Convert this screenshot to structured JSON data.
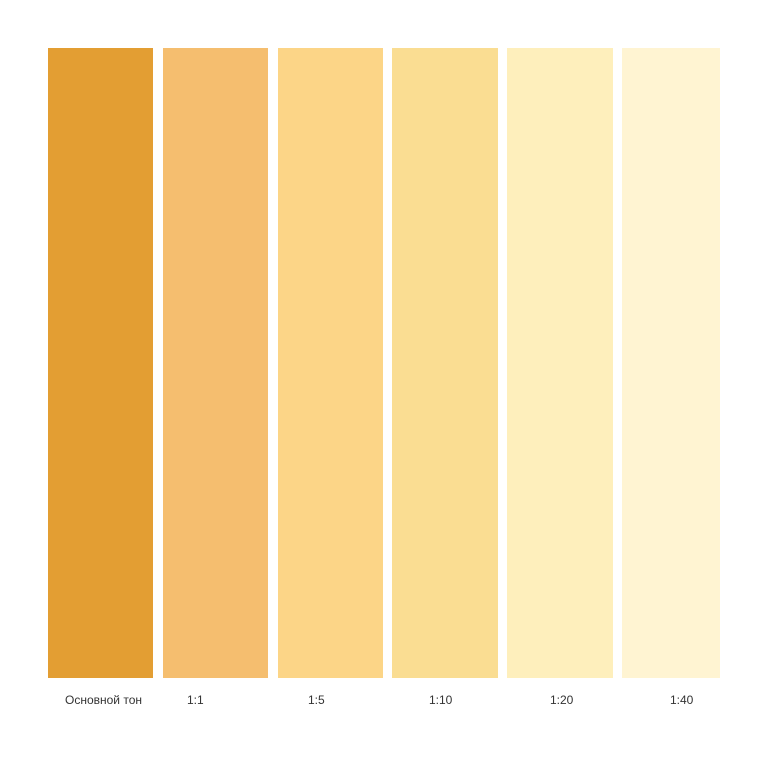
{
  "swatches": [
    {
      "label": "Основной тон",
      "color": "#E39E33"
    },
    {
      "label": "1:1",
      "color": "#F5BE6F"
    },
    {
      "label": "1:5",
      "color": "#FCD587"
    },
    {
      "label": "1:10",
      "color": "#FADD92"
    },
    {
      "label": "1:20",
      "color": "#FEEFBC"
    },
    {
      "label": "1:40",
      "color": "#FFF4D2"
    }
  ]
}
